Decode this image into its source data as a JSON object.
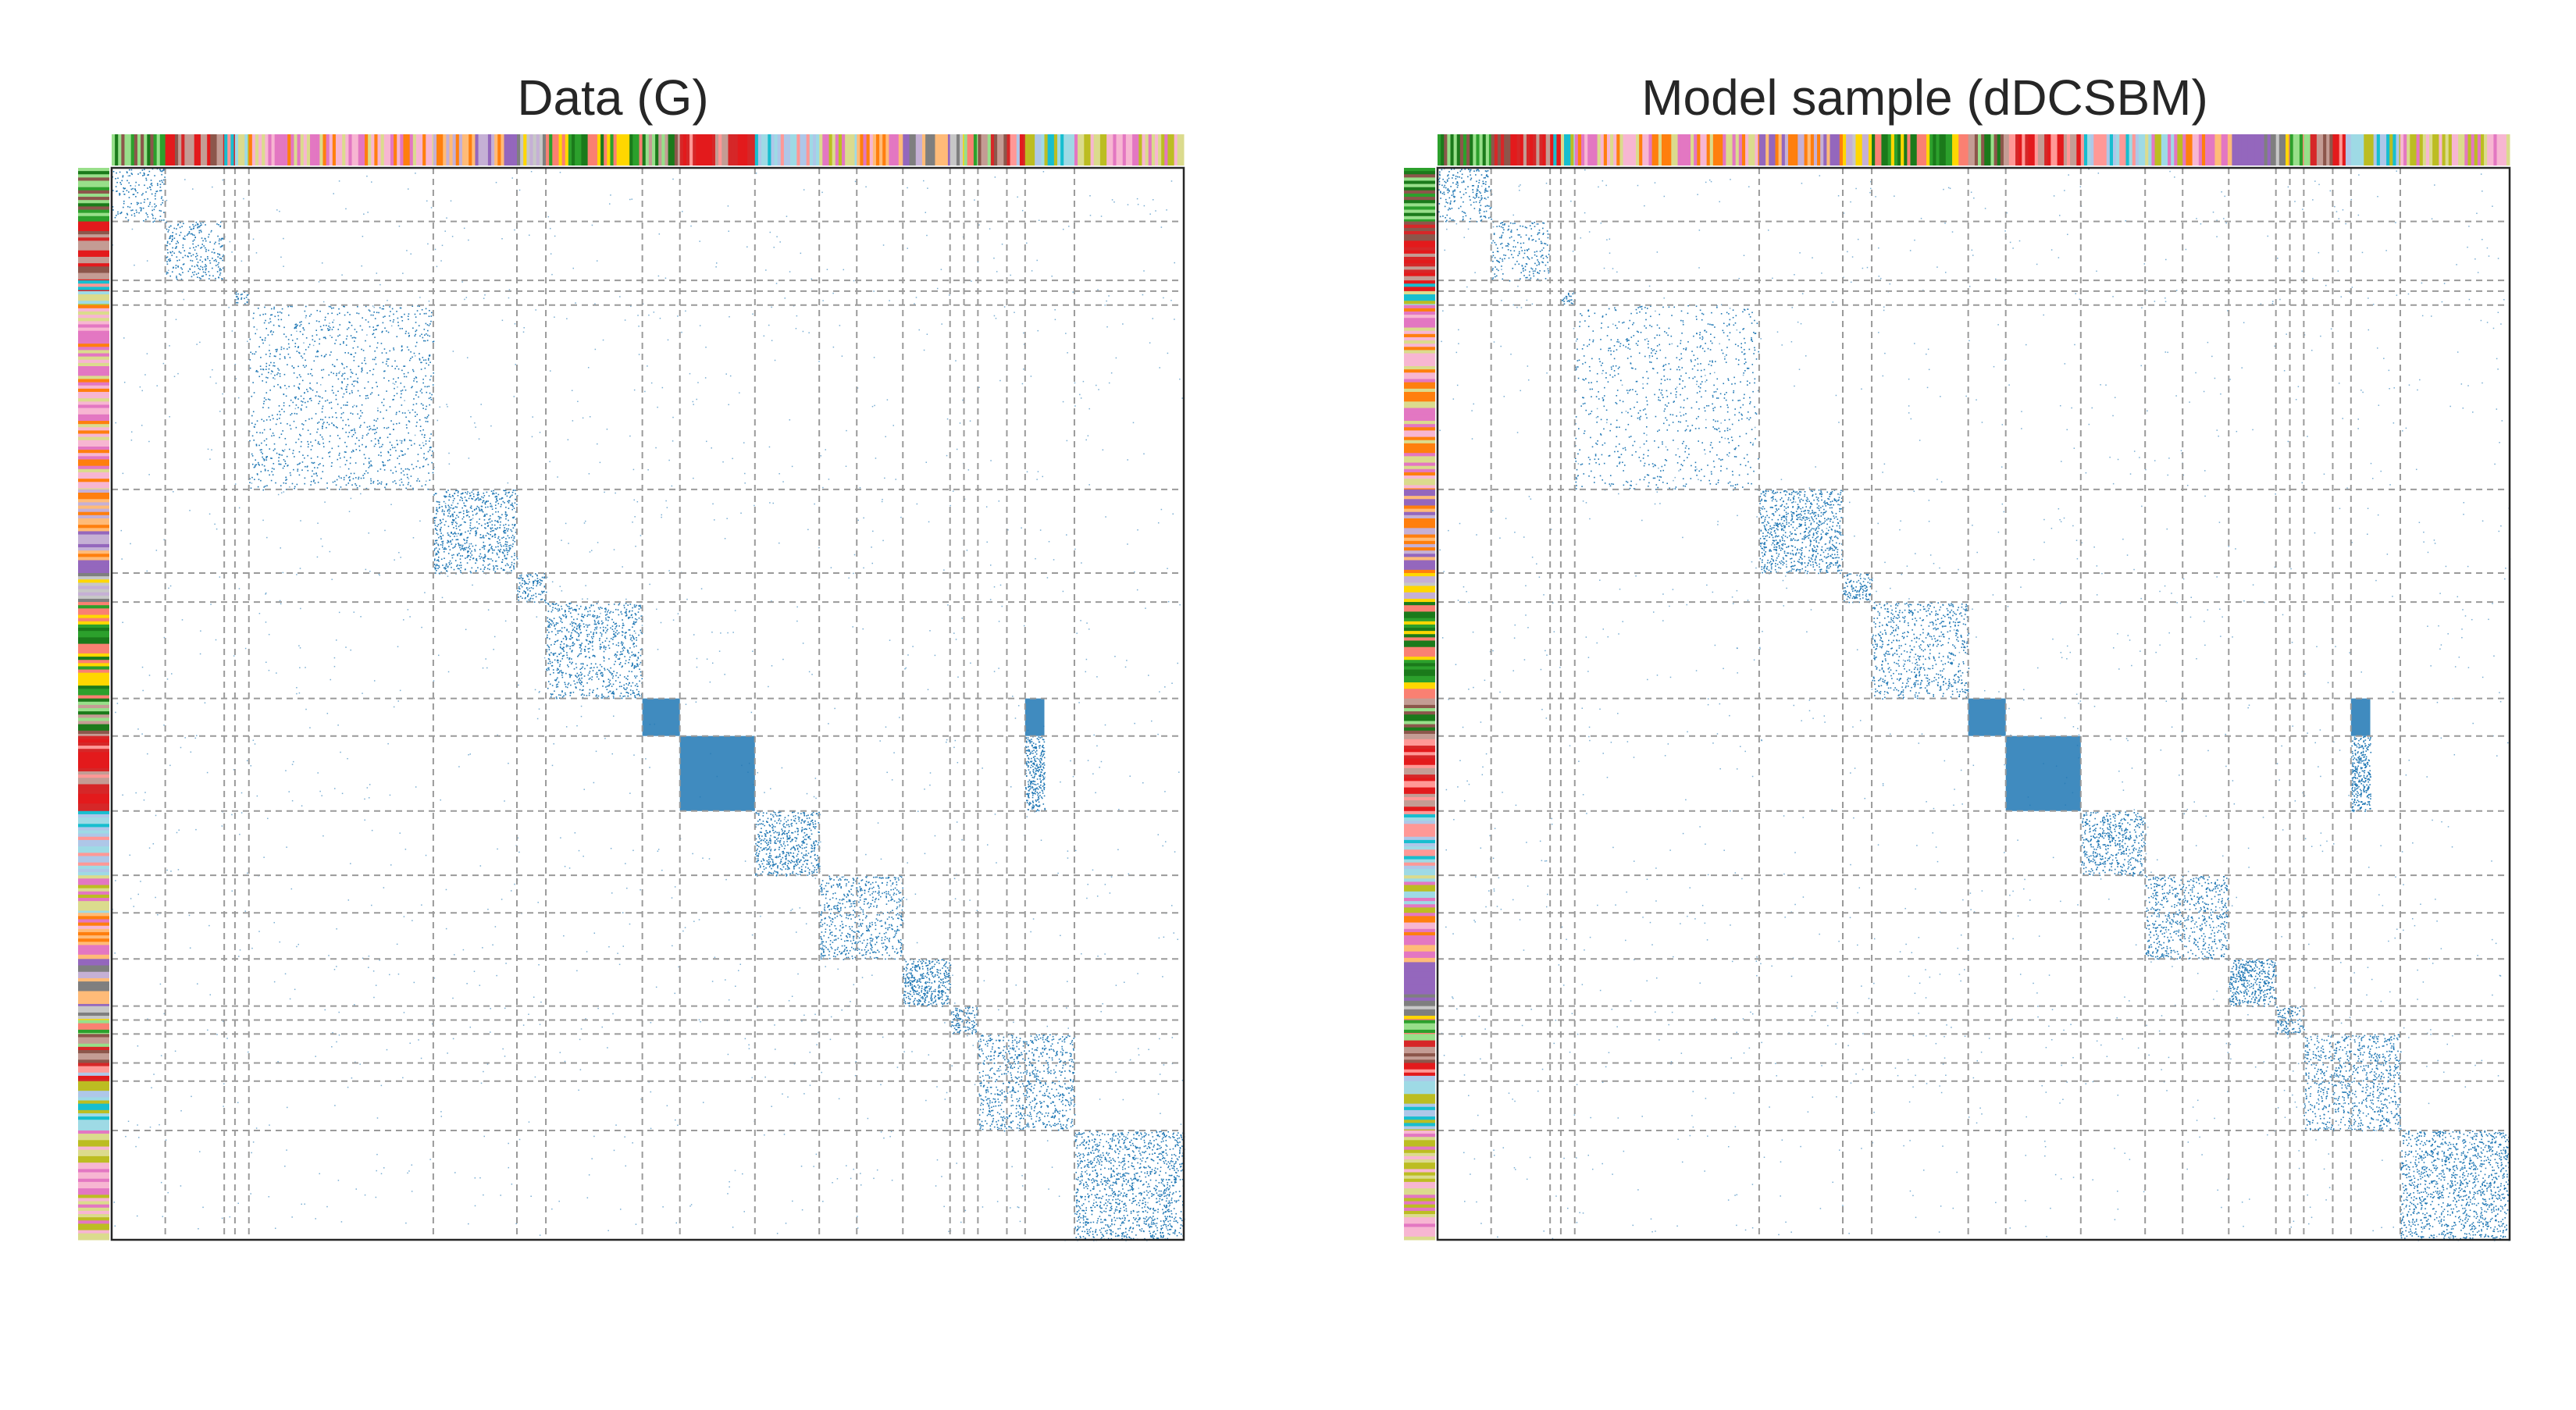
{
  "chart_data": [
    {
      "type": "heatmap",
      "title": "Data (G)",
      "description_kind": "adjacency-matrix",
      "n_nodes": 1000,
      "block_boundaries": [
        0,
        50,
        105,
        115,
        128,
        300,
        378,
        405,
        495,
        530,
        600,
        660,
        695,
        738,
        782,
        795,
        808,
        835,
        852,
        898,
        1000
      ],
      "dense_blocks": [
        {
          "rows": [
            0,
            50
          ],
          "cols": [
            0,
            50
          ],
          "density": 0.2
        },
        {
          "rows": [
            50,
            105
          ],
          "cols": [
            50,
            105
          ],
          "density": 0.25
        },
        {
          "rows": [
            115,
            128
          ],
          "cols": [
            115,
            128
          ],
          "density": 0.5
        },
        {
          "rows": [
            128,
            300
          ],
          "cols": [
            128,
            300
          ],
          "density": 0.12
        },
        {
          "rows": [
            300,
            378
          ],
          "cols": [
            300,
            378
          ],
          "density": 0.35
        },
        {
          "rows": [
            378,
            405
          ],
          "cols": [
            378,
            405
          ],
          "density": 0.5
        },
        {
          "rows": [
            405,
            495
          ],
          "cols": [
            405,
            495
          ],
          "density": 0.3
        },
        {
          "rows": [
            495,
            530
          ],
          "cols": [
            495,
            530
          ],
          "density": 0.95
        },
        {
          "rows": [
            530,
            600
          ],
          "cols": [
            530,
            600
          ],
          "density": 0.95
        },
        {
          "rows": [
            600,
            660
          ],
          "cols": [
            600,
            660
          ],
          "density": 0.45
        },
        {
          "rows": [
            660,
            738
          ],
          "cols": [
            660,
            738
          ],
          "density": 0.3
        },
        {
          "rows": [
            738,
            782
          ],
          "cols": [
            738,
            782
          ],
          "density": 0.6
        },
        {
          "rows": [
            782,
            808
          ],
          "cols": [
            782,
            808
          ],
          "density": 0.5
        },
        {
          "rows": [
            808,
            898
          ],
          "cols": [
            808,
            898
          ],
          "density": 0.3
        },
        {
          "rows": [
            898,
            1000
          ],
          "cols": [
            898,
            1000
          ],
          "density": 0.35
        },
        {
          "rows": [
            495,
            530
          ],
          "cols": [
            852,
            870
          ],
          "density": 0.9
        },
        {
          "rows": [
            530,
            600
          ],
          "cols": [
            852,
            870
          ],
          "density": 0.7
        }
      ]
    },
    {
      "type": "heatmap",
      "title": "Model sample (dDCSBM)",
      "description_kind": "adjacency-matrix",
      "n_nodes": 1000,
      "block_boundaries": [
        0,
        50,
        105,
        115,
        128,
        300,
        378,
        405,
        495,
        530,
        600,
        660,
        695,
        738,
        782,
        795,
        808,
        835,
        852,
        898,
        1000
      ],
      "dense_blocks": [
        {
          "rows": [
            0,
            50
          ],
          "cols": [
            0,
            50
          ],
          "density": 0.25
        },
        {
          "rows": [
            50,
            105
          ],
          "cols": [
            50,
            105
          ],
          "density": 0.2
        },
        {
          "rows": [
            115,
            128
          ],
          "cols": [
            115,
            128
          ],
          "density": 0.5
        },
        {
          "rows": [
            128,
            300
          ],
          "cols": [
            128,
            300
          ],
          "density": 0.08
        },
        {
          "rows": [
            300,
            378
          ],
          "cols": [
            300,
            378
          ],
          "density": 0.4
        },
        {
          "rows": [
            378,
            405
          ],
          "cols": [
            378,
            405
          ],
          "density": 0.5
        },
        {
          "rows": [
            405,
            495
          ],
          "cols": [
            405,
            495
          ],
          "density": 0.25
        },
        {
          "rows": [
            495,
            530
          ],
          "cols": [
            495,
            530
          ],
          "density": 0.95
        },
        {
          "rows": [
            530,
            600
          ],
          "cols": [
            530,
            600
          ],
          "density": 0.95
        },
        {
          "rows": [
            600,
            660
          ],
          "cols": [
            600,
            660
          ],
          "density": 0.4
        },
        {
          "rows": [
            660,
            738
          ],
          "cols": [
            660,
            738
          ],
          "density": 0.3
        },
        {
          "rows": [
            738,
            782
          ],
          "cols": [
            738,
            782
          ],
          "density": 0.6
        },
        {
          "rows": [
            782,
            808
          ],
          "cols": [
            782,
            808
          ],
          "density": 0.5
        },
        {
          "rows": [
            808,
            898
          ],
          "cols": [
            808,
            898
          ],
          "density": 0.3
        },
        {
          "rows": [
            898,
            1000
          ],
          "cols": [
            898,
            1000
          ],
          "density": 0.35
        },
        {
          "rows": [
            495,
            530
          ],
          "cols": [
            852,
            870
          ],
          "density": 0.9
        },
        {
          "rows": [
            530,
            600
          ],
          "cols": [
            852,
            870
          ],
          "density": 0.7
        }
      ]
    }
  ],
  "colors": {
    "dot": "#1f77b4",
    "dashed_line": "#9a9a9a",
    "axis": "#262626",
    "title": "#262626",
    "label_bar_palette": [
      "#2ca02c",
      "#1b7a1b",
      "#98df8a",
      "#8c564b",
      "#c49c94",
      "#d62728",
      "#e31a1c",
      "#ff9896",
      "#aec7e8",
      "#17becf",
      "#9edae5",
      "#bcbd22",
      "#dbdb8d",
      "#e377c2",
      "#f7b6d2",
      "#ff7f0e",
      "#ffbb78",
      "#9467bd",
      "#c5b0d5",
      "#7f7f7f",
      "#c7c7c7",
      "#ffd700",
      "#fa8072"
    ]
  }
}
